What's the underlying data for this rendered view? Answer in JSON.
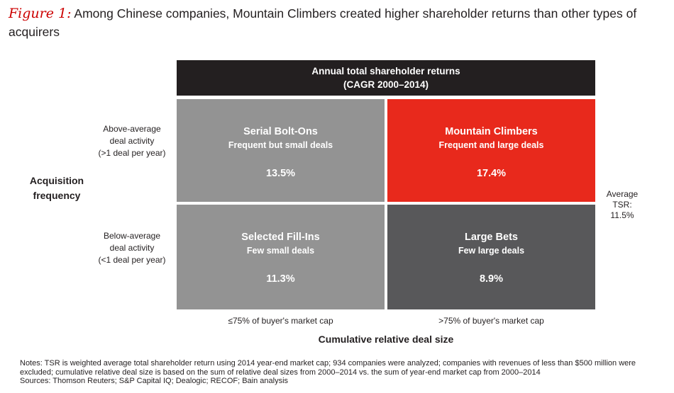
{
  "figure": {
    "label": "Figure 1:",
    "title": "Among Chinese companies, Mountain Climbers created higher shareholder returns than other types of acquirers"
  },
  "chart_data": {
    "type": "table",
    "header_line1": "Annual total shareholder returns",
    "header_line2": "(CAGR 2000–2014)",
    "ylabel": "Acquisition frequency",
    "xlabel": "Cumulative relative deal size",
    "row_labels": [
      [
        "Above-average",
        "deal activity",
        "(>1 deal per year)"
      ],
      [
        "Below-average",
        "deal activity",
        "(<1 deal per year)"
      ]
    ],
    "col_labels": [
      "≤75% of buyer's market cap",
      ">75% of buyer's market cap"
    ],
    "cells": [
      {
        "name": "Serial Bolt-Ons",
        "desc": "Frequent but small deals",
        "value_label": "13.5%",
        "value": 13.5,
        "color": "#939393"
      },
      {
        "name": "Mountain Climbers",
        "desc": "Frequent and large deals",
        "value_label": "17.4%",
        "value": 17.4,
        "color": "#e8291c"
      },
      {
        "name": "Selected Fill-Ins",
        "desc": "Few small deals",
        "value_label": "11.3%",
        "value": 11.3,
        "color": "#939393"
      },
      {
        "name": "Large Bets",
        "desc": "Few large deals",
        "value_label": "8.9%",
        "value": 8.9,
        "color": "#58585a"
      }
    ],
    "average": {
      "line1": "Average",
      "line2": "TSR:",
      "line3": "11.5%",
      "value": 11.5
    }
  },
  "notes": {
    "notes_text": "Notes: TSR is weighted average total shareholder return using 2014 year-end market cap; 934 companies were analyzed; companies with revenues of less than $500 million were excluded; cumulative relative deal size is based on the sum of relative deal sizes from 2000–2014 vs. the sum of year-end market cap from 2000–2014",
    "sources_text": "Sources: Thomson Reuters; S&P Capital IQ; Dealogic; RECOF; Bain analysis"
  }
}
